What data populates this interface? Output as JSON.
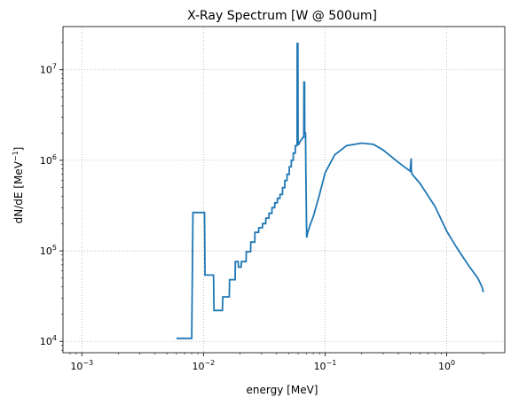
{
  "chart_data": {
    "type": "line",
    "title": "X-Ray Spectrum [W @ 500um]",
    "xlabel": "energy [MeV]",
    "ylabel_base": "dN/dE [MeV",
    "ylabel_sup": "−1",
    "ylabel_end": "]",
    "xscale": "log",
    "yscale": "log",
    "xlim": [
      0.0007,
      3.0
    ],
    "ylim": [
      7500,
      30000000
    ],
    "grid": true,
    "grid_style": "dotted",
    "line_color": "#1f77b4",
    "x_ticks": [
      {
        "value": 0.001,
        "base": "10",
        "exp": "−3"
      },
      {
        "value": 0.01,
        "base": "10",
        "exp": "−2"
      },
      {
        "value": 0.1,
        "base": "10",
        "exp": "−1"
      },
      {
        "value": 1,
        "base": "10",
        "exp": "0"
      }
    ],
    "y_ticks": [
      {
        "value": 10000,
        "base": "10",
        "exp": "4"
      },
      {
        "value": 100000,
        "base": "10",
        "exp": "5"
      },
      {
        "value": 1000000,
        "base": "10",
        "exp": "6"
      },
      {
        "value": 10000000,
        "base": "10",
        "exp": "7"
      }
    ],
    "series": [
      {
        "x": [
          0.006,
          0.008,
          0.0082,
          0.0102,
          0.0103,
          0.0121,
          0.0122,
          0.0143,
          0.0144,
          0.0163,
          0.0164,
          0.0182,
          0.0183,
          0.0193,
          0.0194,
          0.0204,
          0.0205,
          0.0224,
          0.0225,
          0.0244,
          0.0245,
          0.0264,
          0.0265,
          0.0284,
          0.0285,
          0.0305,
          0.0306,
          0.0325,
          0.0326,
          0.0345,
          0.0346,
          0.0365,
          0.0366,
          0.0385,
          0.0386,
          0.0405,
          0.0406,
          0.0425,
          0.0426,
          0.0446,
          0.0447,
          0.0466,
          0.0467,
          0.0486,
          0.0487,
          0.0507,
          0.0508,
          0.0527,
          0.0528,
          0.0547,
          0.0548,
          0.0568,
          0.0569,
          0.0588,
          0.0589,
          0.059,
          0.0598,
          0.06,
          0.0608,
          0.062,
          0.064,
          0.066,
          0.0668,
          0.067,
          0.0678,
          0.068,
          0.069,
          0.0695,
          0.0705,
          0.072,
          0.075,
          0.08,
          0.09,
          0.1,
          0.12,
          0.15,
          0.2,
          0.25,
          0.3,
          0.4,
          0.5,
          0.51,
          0.512,
          0.52,
          0.6,
          0.8,
          1.0,
          1.2,
          1.5,
          1.8,
          1.9,
          1.95,
          2.0
        ],
        "y": [
          10800,
          10800,
          265000,
          265000,
          54000,
          54000,
          22000,
          22000,
          31000,
          31000,
          48000,
          48000,
          76000,
          76000,
          66000,
          66000,
          76000,
          76000,
          98000,
          98000,
          125000,
          125000,
          160000,
          160000,
          180000,
          180000,
          200000,
          200000,
          230000,
          230000,
          260000,
          260000,
          300000,
          300000,
          340000,
          340000,
          380000,
          380000,
          420000,
          420000,
          500000,
          500000,
          600000,
          600000,
          700000,
          700000,
          850000,
          850000,
          1000000,
          1000000,
          1200000,
          1200000,
          1450000,
          1450000,
          1450000,
          19500000,
          19500000,
          1500000,
          1500000,
          1600000,
          1700000,
          1800000,
          1800000,
          7300000,
          7300000,
          2000000,
          2000000,
          700000,
          140000,
          160000,
          190000,
          240000,
          420000,
          730000,
          1150000,
          1450000,
          1550000,
          1500000,
          1300000,
          950000,
          760000,
          1050000,
          760000,
          700000,
          560000,
          310000,
          165000,
          110000,
          70000,
          50000,
          43000,
          40000,
          35000
        ]
      }
    ]
  }
}
